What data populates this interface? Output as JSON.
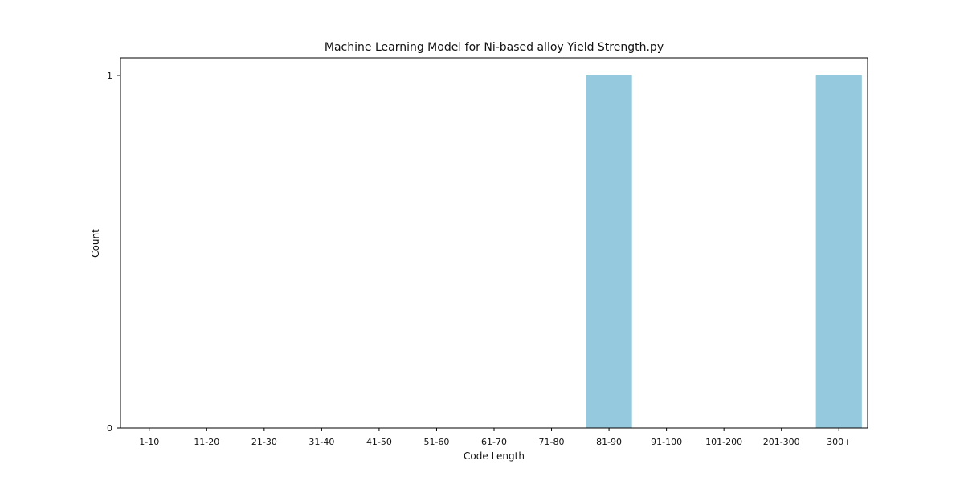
{
  "chart_data": {
    "type": "bar",
    "title": "Machine Learning Model for Ni-based alloy Yield Strength.py",
    "xlabel": "Code Length",
    "ylabel": "Count",
    "categories": [
      "1-10",
      "11-20",
      "21-30",
      "31-40",
      "41-50",
      "51-60",
      "61-70",
      "71-80",
      "81-90",
      "91-100",
      "101-200",
      "201-300",
      "300+"
    ],
    "values": [
      0,
      0,
      0,
      0,
      0,
      0,
      0,
      0,
      1,
      0,
      0,
      0,
      1
    ],
    "yticks": [
      "0",
      "1"
    ],
    "ylim": [
      0,
      1.05
    ],
    "grid": false,
    "colors": {
      "bar": "#95c9dd",
      "axis": "#000000"
    }
  }
}
